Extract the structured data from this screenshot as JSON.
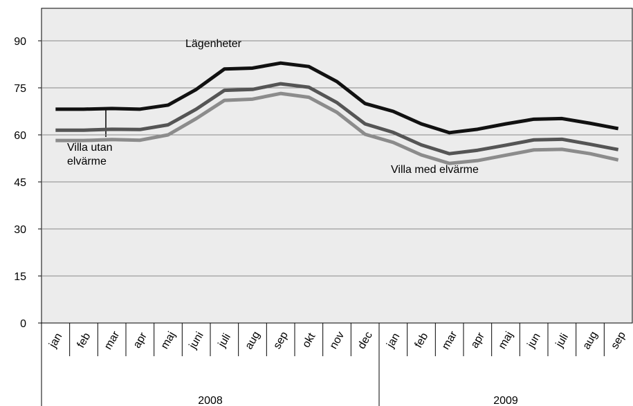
{
  "chart_data": {
    "type": "line",
    "categories": [
      "jan",
      "feb",
      "mar",
      "apr",
      "maj",
      "juni",
      "juli",
      "aug",
      "sep",
      "okt",
      "nov",
      "dec",
      "jan",
      "feb",
      "mar",
      "apr",
      "maj",
      "jun",
      "juli",
      "aug",
      "sep"
    ],
    "x_groups": [
      {
        "label": "2008",
        "count": 12
      },
      {
        "label": "2009",
        "count": 9
      }
    ],
    "series": [
      {
        "name": "Lägenheter",
        "color": "#111111",
        "values": [
          68.2,
          68.2,
          68.4,
          68.2,
          69.5,
          74.5,
          81,
          81.3,
          82.9,
          81.8,
          77,
          70,
          67.5,
          63.5,
          60.7,
          61.8,
          63.5,
          65,
          65.2,
          63.7,
          62
        ]
      },
      {
        "name": "Villa utan elvärme",
        "color": "#555555",
        "values": [
          61.5,
          61.5,
          61.8,
          61.7,
          63.2,
          68.2,
          74.2,
          74.5,
          76.3,
          75.2,
          70.3,
          63.5,
          60.8,
          56.8,
          54,
          55.1,
          56.7,
          58.4,
          58.6,
          57,
          55.3
        ]
      },
      {
        "name": "Villa med elvärme",
        "color": "#8c8c8c",
        "values": [
          58.2,
          58.2,
          58.5,
          58.3,
          60,
          65.2,
          71,
          71.4,
          73.2,
          72,
          67.2,
          60.2,
          57.6,
          53.6,
          50.9,
          51.8,
          53.5,
          55.2,
          55.4,
          54,
          52
        ]
      }
    ],
    "ylim": [
      0,
      90
    ],
    "yticks": [
      0,
      15,
      30,
      45,
      60,
      75,
      90
    ],
    "grid": true
  }
}
